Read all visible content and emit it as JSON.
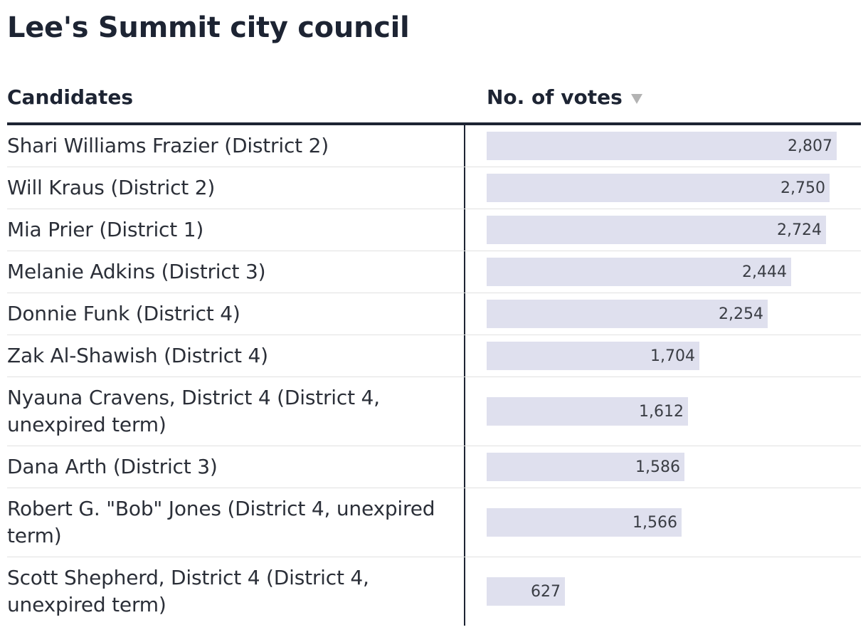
{
  "title": "Lee's Summit city council",
  "header": {
    "candidates_label": "Candidates",
    "votes_label": "No. of votes",
    "sort_icon": "sort-descending-icon"
  },
  "colors": {
    "bar": "#dfe0ee",
    "text": "#1d2433",
    "sort_icon": "#b3b3b3"
  },
  "chart_data": {
    "type": "bar",
    "orientation": "horizontal",
    "title": "Lee's Summit city council",
    "xlabel": "No. of votes",
    "ylabel": "Candidates",
    "xlim": [
      0,
      2807
    ],
    "categories": [
      "Shari Williams Frazier (District 2)",
      "Will Kraus (District 2)",
      "Mia Prier (District 1)",
      "Melanie Adkins (District 3)",
      "Donnie Funk (District 4)",
      "Zak Al-Shawish (District 4)",
      "Nyauna Cravens, District 4 (District 4, unexpired term)",
      "Dana Arth (District 3)",
      "Robert G. \"Bob\" Jones (District 4, unexpired term)",
      "Scott Shepherd, District 4 (District 4, unexpired term)"
    ],
    "values": [
      2807,
      2750,
      2724,
      2444,
      2254,
      1704,
      1612,
      1586,
      1566,
      627
    ],
    "value_labels": [
      "2,807",
      "2,750",
      "2,724",
      "2,444",
      "2,254",
      "1,704",
      "1,612",
      "1,586",
      "1,566",
      "627"
    ]
  }
}
